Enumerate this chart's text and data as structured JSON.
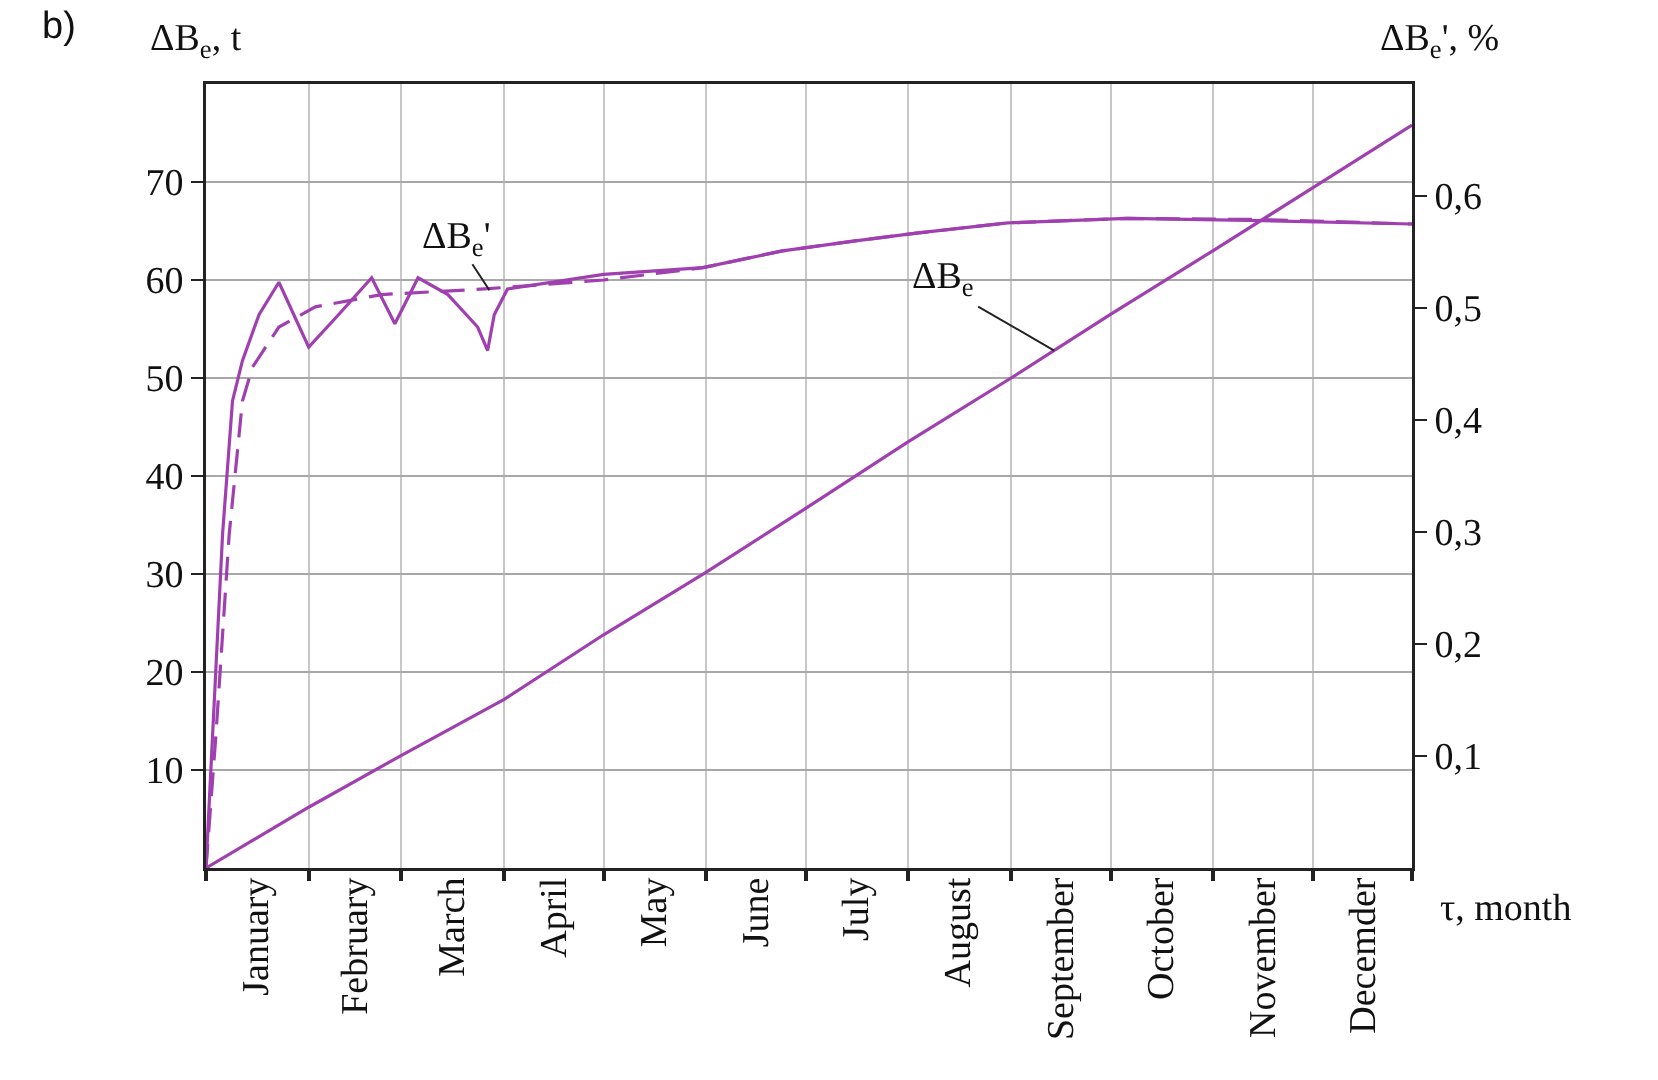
{
  "chart_data": {
    "type": "line",
    "xlabel": "τ, month",
    "ylabel": "ΔB$_{e}$, t",
    "y2label": "ΔB$_{e}$', %",
    "annotations": [
      "b)",
      "ΔB$_{e}$'",
      {
        "text": "ΔB$_{e}$",
        "x": "--09-14",
        "y": 52.8
      }
    ],
    "xlim": [
      "--01-01",
      "--12-31"
    ],
    "ylim": [
      0,
      80
    ],
    "y2lim": [
      0,
      0.7
    ],
    "xticks": [
      {
        "value": "--01-01",
        "label": null
      },
      {
        "value": "--02-01",
        "label": null
      },
      {
        "value": "--03-01",
        "label": null
      },
      {
        "value": "--04-01",
        "label": null
      },
      {
        "value": "--05-01",
        "label": null
      },
      {
        "value": "--06-01",
        "label": null
      },
      {
        "value": "--07-01",
        "label": null
      },
      {
        "value": "--08-01",
        "label": null
      },
      {
        "value": "--09-01",
        "label": null
      },
      {
        "value": "--10-01",
        "label": null
      },
      {
        "value": "--11-01",
        "label": null
      },
      {
        "value": "--12-01",
        "label": null
      },
      {
        "value": "--12-31",
        "label": null
      },
      {
        "value": "--01-16",
        "label": "January"
      },
      {
        "value": "--02-15",
        "label": "February"
      },
      {
        "value": "--03-16",
        "label": "March"
      },
      {
        "value": "--04-16",
        "label": "April"
      },
      {
        "value": "--05-16",
        "label": "May"
      },
      {
        "value": "--06-16",
        "label": "June"
      },
      {
        "value": "--07-16",
        "label": "July"
      },
      {
        "value": "--08-16",
        "label": "August"
      },
      {
        "value": "--09-16",
        "label": "September"
      },
      {
        "value": "--10-16",
        "label": "October"
      },
      {
        "value": "--11-16",
        "label": "November"
      },
      {
        "value": "--12-16",
        "label": "Decemder"
      }
    ],
    "yticks": [
      10,
      20,
      30,
      40,
      50,
      60,
      70
    ],
    "y2ticks": [
      {
        "value": 0.1,
        "label": "0,1"
      },
      {
        "value": 0.2,
        "label": "0,2"
      },
      {
        "value": 0.3,
        "label": "0,3"
      },
      {
        "value": 0.4,
        "label": "0,4"
      },
      {
        "value": 0.5,
        "label": "0,5"
      },
      {
        "value": 0.6,
        "label": "0,6"
      }
    ],
    "grid": true,
    "marker": "none",
    "series": [
      {
        "color": "#a040b0",
        "line_style": "solid",
        "x": [
          "--01-01",
          "--02-01",
          "--03-01",
          "--04-01",
          "--05-01",
          "--06-01",
          "--07-01",
          "--08-01",
          "--09-01",
          "--10-01",
          "--11-01",
          "--12-01",
          "--12-31"
        ],
        "values": [
          0,
          6.2,
          11.5,
          17.2,
          23.8,
          30.2,
          36.7,
          43.5,
          50.0,
          56.5,
          63.0,
          69.4,
          75.8
        ]
      },
      {
        "color": "#a040b0",
        "line_style": "solid",
        "axis": "y2",
        "x": [
          "--01-01",
          "--01-03",
          "--01-06",
          "--01-09",
          "--01-12",
          "--01-17",
          "--01-23",
          "--02-01",
          "--02-10",
          "--02-20",
          "--02-27",
          "--03-06",
          "--03-15",
          "--03-24",
          "--03-27",
          "--03-29",
          "--04-02",
          "--05-01",
          "--05-31",
          "--06-24",
          "--07-16",
          "--08-04",
          "--08-31",
          "--10-06",
          "--11-16",
          "--12-31"
        ],
        "values": [
          0,
          0.119,
          0.298,
          0.417,
          0.453,
          0.494,
          0.523,
          0.465,
          0.494,
          0.527,
          0.486,
          0.527,
          0.512,
          0.483,
          0.462,
          0.494,
          0.517,
          0.53,
          0.536,
          0.551,
          0.56,
          0.567,
          0.576,
          0.58,
          0.578,
          0.575
        ]
      },
      {
        "color": "#a040b0",
        "line_style": "dashed",
        "axis": "y2",
        "x": [
          "--01-01",
          "--01-04",
          "--01-08",
          "--01-12",
          "--01-15",
          "--01-23",
          "--02-03",
          "--02-23",
          "--03-26",
          "--05-01",
          "--05-31",
          "--06-24",
          "--07-16",
          "--08-04",
          "--08-31",
          "--10-06",
          "--11-16",
          "--12-31"
        ],
        "values": [
          0,
          0.119,
          0.298,
          0.417,
          0.447,
          0.483,
          0.501,
          0.512,
          0.517,
          0.525,
          0.536,
          0.551,
          0.56,
          0.567,
          0.576,
          0.58,
          0.579,
          0.575
        ]
      }
    ]
  }
}
